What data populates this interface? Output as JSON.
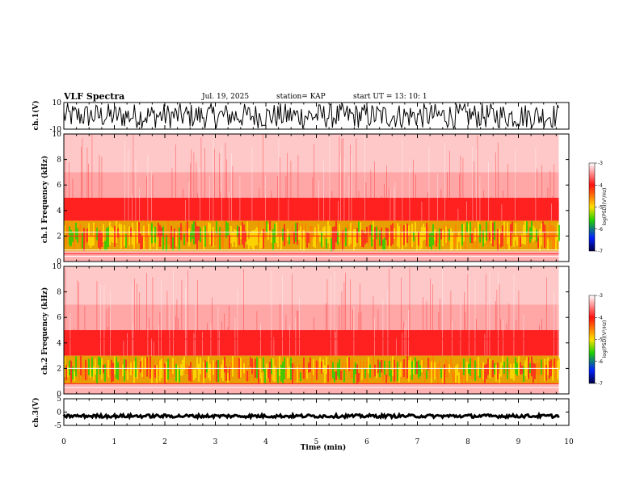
{
  "header": {
    "title": "VLF Spectra",
    "date": "Jul. 19, 2025",
    "station": "station= KAP",
    "start": "start  UT  =   13: 10: 1"
  },
  "chart_data": {
    "type": "heatmap",
    "title": "VLF Spectra",
    "xlabel": "Time  (min)",
    "xlim": [
      0,
      10
    ],
    "x_ticks": [
      "0",
      "1",
      "2",
      "3",
      "4",
      "5",
      "6",
      "7",
      "8",
      "9",
      "10"
    ],
    "data_end_min": 9.8,
    "panels": [
      {
        "id": "ch1-wave",
        "kind": "waveform",
        "ylabel": "ch.1(V)",
        "ylim": [
          -10,
          10
        ],
        "y_ticks": [
          "10",
          "-10"
        ],
        "amplitude": 10
      },
      {
        "id": "ch1-spec",
        "kind": "spectrogram",
        "ylabel": "ch.1  Frequency  (kHz)",
        "ylim": [
          0,
          10
        ],
        "y_ticks": [
          "0",
          "2",
          "4",
          "6",
          "8",
          "10"
        ],
        "bands_khz": {
          "intense": [
            0.8,
            3.2
          ],
          "moderate": [
            3.2,
            5.0
          ],
          "faint": [
            5.0,
            10.0
          ]
        },
        "lines_khz": [
          0.4,
          0.6,
          0.9,
          2.0,
          2.3
        ],
        "colorbar": {
          "label": "log(PSD)(V²/Hz)",
          "ticks": [
            "-3",
            "-4",
            "-5",
            "-6",
            "-7"
          ],
          "range": [
            -7,
            -3
          ]
        }
      },
      {
        "id": "ch2-spec",
        "kind": "spectrogram",
        "ylabel": "ch.2  Frequency  (kHz)",
        "ylim": [
          0,
          10
        ],
        "y_ticks": [
          "0",
          "2",
          "4",
          "6",
          "8",
          "10"
        ],
        "bands_khz": {
          "intense": [
            0.8,
            3.0
          ],
          "moderate": [
            3.0,
            5.0
          ],
          "faint": [
            5.0,
            10.0
          ]
        },
        "lines_khz": [
          0.5,
          0.8,
          2.0,
          4.3
        ],
        "colorbar": {
          "label": "log(PSD)(V²/Hz)",
          "ticks": [
            "-3",
            "-4",
            "-5",
            "-6",
            "-7"
          ],
          "range": [
            -7,
            -3
          ]
        }
      },
      {
        "id": "ch3-wave",
        "kind": "waveform",
        "ylabel": "ch.3(V)",
        "ylim": [
          -5,
          5
        ],
        "y_ticks": [
          "5",
          "0",
          "-5"
        ],
        "amplitude": 0.6
      }
    ]
  },
  "colors": {
    "white": "#ffffff",
    "red": "#ff2020",
    "yellow": "#ffe000",
    "green": "#20d000",
    "blue": "#0020ff",
    "navy": "#000040",
    "black": "#000000"
  }
}
